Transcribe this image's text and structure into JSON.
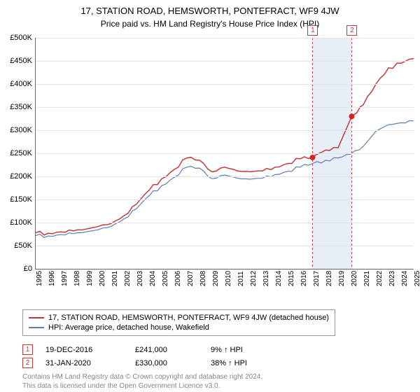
{
  "title": "17, STATION ROAD, HEMSWORTH, PONTEFRACT, WF9 4JW",
  "subtitle": "Price paid vs. HM Land Registry's House Price Index (HPI)",
  "chart": {
    "type": "line",
    "background_color": "#ffffff",
    "grid_color": "#e5e5e5",
    "xlim": [
      1995,
      2025
    ],
    "ylim": [
      0,
      500000
    ],
    "ytick_step": 50000,
    "yticks": [
      "£0",
      "£50K",
      "£100K",
      "£150K",
      "£200K",
      "£250K",
      "£300K",
      "£350K",
      "£400K",
      "£450K",
      "£500K"
    ],
    "xticks": [
      "1995",
      "1996",
      "1997",
      "1998",
      "1999",
      "2000",
      "2001",
      "2002",
      "2003",
      "2004",
      "2005",
      "2006",
      "2007",
      "2008",
      "2009",
      "2010",
      "2011",
      "2012",
      "2013",
      "2014",
      "2015",
      "2016",
      "2017",
      "2018",
      "2019",
      "2020",
      "2021",
      "2022",
      "2023",
      "2024",
      "2025"
    ],
    "shaded_region": {
      "x_start": 2016.97,
      "x_end": 2020.08,
      "color": "#e8eef7"
    },
    "vlines": [
      {
        "x": 2016.97,
        "label": "1",
        "color": "#c23b3b"
      },
      {
        "x": 2020.08,
        "label": "2",
        "color": "#c23b3b"
      }
    ],
    "series": [
      {
        "name": "17, STATION ROAD, HEMSWORTH, PONTEFRACT, WF9 4JW (detached house)",
        "color": "#c23b3b",
        "line_width": 1.5,
        "data": [
          [
            1995,
            78000
          ],
          [
            1996,
            77000
          ],
          [
            1997,
            80000
          ],
          [
            1998,
            82000
          ],
          [
            1999,
            86000
          ],
          [
            2000,
            92000
          ],
          [
            2001,
            98000
          ],
          [
            2002,
            115000
          ],
          [
            2003,
            140000
          ],
          [
            2004,
            170000
          ],
          [
            2005,
            195000
          ],
          [
            2006,
            215000
          ],
          [
            2007,
            240000
          ],
          [
            2008,
            235000
          ],
          [
            2009,
            210000
          ],
          [
            2010,
            220000
          ],
          [
            2011,
            212000
          ],
          [
            2012,
            210000
          ],
          [
            2013,
            212000
          ],
          [
            2014,
            220000
          ],
          [
            2015,
            228000
          ],
          [
            2016,
            238000
          ],
          [
            2016.97,
            241000
          ],
          [
            2017.5,
            250000
          ],
          [
            2018,
            257000
          ],
          [
            2019,
            262000
          ],
          [
            2020.08,
            330000
          ],
          [
            2020.5,
            338000
          ],
          [
            2021,
            355000
          ],
          [
            2022,
            400000
          ],
          [
            2023,
            435000
          ],
          [
            2024,
            445000
          ],
          [
            2025,
            455000
          ]
        ]
      },
      {
        "name": "HPI: Average price, detached house, Wakefield",
        "color": "#5b7fb5",
        "line_width": 1.2,
        "data": [
          [
            1995,
            72000
          ],
          [
            1996,
            71000
          ],
          [
            1997,
            74000
          ],
          [
            1998,
            76000
          ],
          [
            1999,
            80000
          ],
          [
            2000,
            85000
          ],
          [
            2001,
            92000
          ],
          [
            2002,
            108000
          ],
          [
            2003,
            130000
          ],
          [
            2004,
            158000
          ],
          [
            2005,
            180000
          ],
          [
            2006,
            198000
          ],
          [
            2007,
            220000
          ],
          [
            2008,
            218000
          ],
          [
            2009,
            195000
          ],
          [
            2010,
            203000
          ],
          [
            2011,
            196000
          ],
          [
            2012,
            194000
          ],
          [
            2013,
            196000
          ],
          [
            2014,
            204000
          ],
          [
            2015,
            211000
          ],
          [
            2016,
            220000
          ],
          [
            2017,
            228000
          ],
          [
            2018,
            235000
          ],
          [
            2019,
            240000
          ],
          [
            2020,
            248000
          ],
          [
            2021,
            265000
          ],
          [
            2022,
            298000
          ],
          [
            2023,
            312000
          ],
          [
            2024,
            316000
          ],
          [
            2025,
            320000
          ]
        ]
      }
    ],
    "sale_points": [
      {
        "x": 2016.97,
        "y": 241000,
        "color": "#e02020"
      },
      {
        "x": 2020.08,
        "y": 330000,
        "color": "#e02020"
      }
    ]
  },
  "legend": {
    "items": [
      {
        "label": "17, STATION ROAD, HEMSWORTH, PONTEFRACT, WF9 4JW (detached house)",
        "color": "#c23b3b"
      },
      {
        "label": "HPI: Average price, detached house, Wakefield",
        "color": "#5b7fb5"
      }
    ]
  },
  "sales": [
    {
      "marker": "1",
      "date": "19-DEC-2016",
      "price": "£241,000",
      "delta": "9% ↑ HPI"
    },
    {
      "marker": "2",
      "date": "31-JAN-2020",
      "price": "£330,000",
      "delta": "38% ↑ HPI"
    }
  ],
  "footer": {
    "line1": "Contains HM Land Registry data © Crown copyright and database right 2024.",
    "line2": "This data is licensed under the Open Government Licence v3.0."
  }
}
